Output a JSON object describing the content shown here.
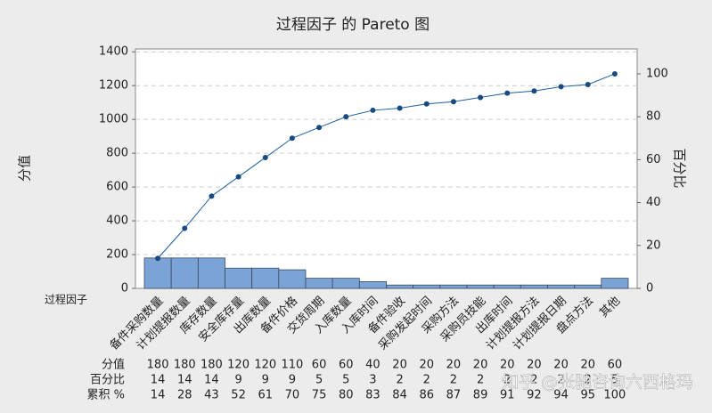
{
  "chart_data": {
    "type": "pareto",
    "title": "过程因子 的 Pareto 图",
    "x_label": "过程因子",
    "y_label": "分值",
    "y2_label": "百分比",
    "categories": [
      "备件采购数量",
      "计划提报数量",
      "库存数量",
      "安全库存量",
      "出库数量",
      "备件价格",
      "交货周期",
      "入库数量",
      "入库时间",
      "备件验收",
      "采购发起时间",
      "采购方法",
      "采购员技能",
      "出库时间",
      "计划提报方法",
      "计划提报日期",
      "盘点方法",
      "其他"
    ],
    "series": [
      {
        "name": "分值",
        "color": "#7ba3d6",
        "values": [
          180,
          180,
          180,
          120,
          120,
          110,
          60,
          60,
          40,
          20,
          20,
          20,
          20,
          20,
          20,
          20,
          20,
          60
        ]
      },
      {
        "name": "百分比",
        "values": [
          14,
          14,
          14,
          9,
          9,
          9,
          5,
          5,
          3,
          2,
          2,
          2,
          2,
          2,
          2,
          2,
          2,
          5
        ]
      },
      {
        "name": "累积 %",
        "color": "#1f5f9f",
        "axis": "y2",
        "values": [
          14,
          28,
          43,
          52,
          61,
          70,
          75,
          80,
          83,
          84,
          86,
          87,
          89,
          91,
          92,
          94,
          95,
          100
        ]
      }
    ],
    "ylim": [
      0,
      1417
    ],
    "yticks": [
      0,
      200,
      400,
      600,
      800,
      1000,
      1200,
      1400
    ],
    "y2lim": [
      0,
      111.6
    ],
    "y2ticks": [
      0,
      20,
      40,
      60,
      80,
      100
    ],
    "grid": true,
    "watermark": "知乎 @张驰咨询六西格玛"
  }
}
